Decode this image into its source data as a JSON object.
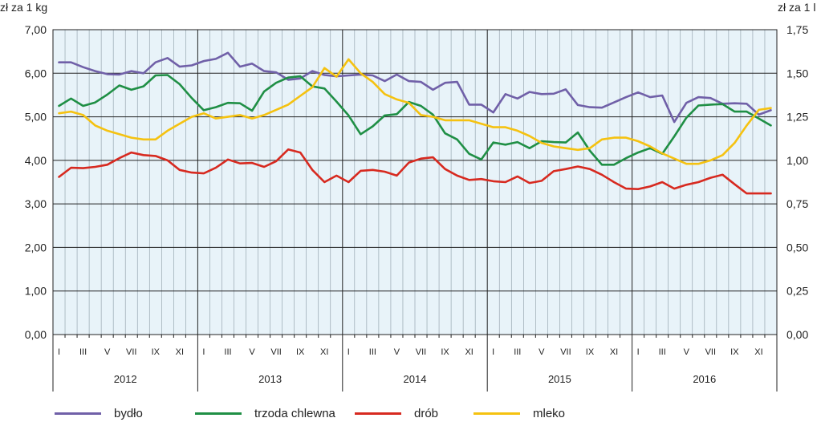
{
  "chart_data": {
    "type": "line",
    "y_left_unit": "zł za 1 kg",
    "y_right_unit": "zł za 1 l",
    "y_left_ticks": [
      "0,00",
      "1,00",
      "2,00",
      "3,00",
      "4,00",
      "5,00",
      "6,00",
      "7,00"
    ],
    "y_right_ticks": [
      "0,00",
      "0,25",
      "0,50",
      "0,75",
      "1,00",
      "1,25",
      "1,50",
      "1,75"
    ],
    "y_left_range": [
      0,
      7
    ],
    "y_right_range": [
      0,
      1.75
    ],
    "month_labels": [
      "I",
      "III",
      "V",
      "VII",
      "IX",
      "XI"
    ],
    "years": [
      "2012",
      "2013",
      "2014",
      "2015",
      "2016"
    ],
    "grid": true,
    "legend_position": "bottom",
    "series": [
      {
        "name": "bydło",
        "axis": "left",
        "color": "#7060a8",
        "values": [
          6.25,
          6.25,
          6.14,
          6.05,
          5.98,
          5.97,
          6.05,
          6.0,
          6.25,
          6.35,
          6.15,
          6.18,
          6.28,
          6.33,
          6.47,
          6.15,
          6.22,
          6.05,
          6.02,
          5.85,
          5.88,
          6.05,
          5.96,
          5.93,
          5.95,
          5.97,
          5.95,
          5.82,
          5.97,
          5.82,
          5.8,
          5.62,
          5.78,
          5.8,
          5.28,
          5.28,
          5.1,
          5.52,
          5.42,
          5.57,
          5.52,
          5.53,
          5.63,
          5.27,
          5.22,
          5.21,
          5.33,
          5.45,
          5.56,
          5.45,
          5.49,
          4.88,
          5.32,
          5.45,
          5.43,
          5.3,
          5.31,
          5.3,
          5.05,
          5.15
        ]
      },
      {
        "name": "trzoda chlewna",
        "axis": "left",
        "color": "#1f8f45",
        "values": [
          5.25,
          5.42,
          5.25,
          5.33,
          5.51,
          5.72,
          5.62,
          5.7,
          5.95,
          5.96,
          5.75,
          5.43,
          5.15,
          5.22,
          5.32,
          5.31,
          5.14,
          5.58,
          5.78,
          5.9,
          5.93,
          5.7,
          5.65,
          5.35,
          5.03,
          4.6,
          4.78,
          5.03,
          5.06,
          5.34,
          5.25,
          5.05,
          4.62,
          4.48,
          4.15,
          4.02,
          4.41,
          4.36,
          4.42,
          4.28,
          4.44,
          4.42,
          4.41,
          4.64,
          4.22,
          3.9,
          3.9,
          4.05,
          4.18,
          4.28,
          4.15,
          4.55,
          4.98,
          5.26,
          5.28,
          5.29,
          5.12,
          5.12,
          4.96,
          4.8
        ]
      },
      {
        "name": "drób",
        "axis": "left",
        "color": "#d72a20",
        "values": [
          3.62,
          3.83,
          3.82,
          3.85,
          3.9,
          4.05,
          4.18,
          4.12,
          4.1,
          4.0,
          3.78,
          3.72,
          3.7,
          3.83,
          4.02,
          3.93,
          3.94,
          3.85,
          3.98,
          4.25,
          4.18,
          3.78,
          3.5,
          3.65,
          3.5,
          3.76,
          3.78,
          3.74,
          3.65,
          3.95,
          4.04,
          4.07,
          3.8,
          3.65,
          3.55,
          3.57,
          3.52,
          3.5,
          3.63,
          3.48,
          3.53,
          3.75,
          3.8,
          3.86,
          3.8,
          3.67,
          3.5,
          3.35,
          3.34,
          3.4,
          3.5,
          3.35,
          3.44,
          3.5,
          3.6,
          3.67,
          3.45,
          3.24,
          3.24,
          3.24
        ]
      },
      {
        "name": "mleko",
        "axis": "right",
        "color": "#f5c210",
        "values": [
          1.27,
          1.28,
          1.26,
          1.2,
          1.17,
          1.15,
          1.13,
          1.12,
          1.12,
          1.17,
          1.21,
          1.25,
          1.27,
          1.24,
          1.25,
          1.26,
          1.24,
          1.26,
          1.29,
          1.32,
          1.37,
          1.42,
          1.53,
          1.48,
          1.58,
          1.5,
          1.45,
          1.38,
          1.35,
          1.33,
          1.26,
          1.25,
          1.23,
          1.23,
          1.23,
          1.21,
          1.19,
          1.19,
          1.17,
          1.14,
          1.1,
          1.08,
          1.07,
          1.06,
          1.07,
          1.12,
          1.13,
          1.13,
          1.11,
          1.08,
          1.04,
          1.01,
          0.98,
          0.98,
          1.0,
          1.03,
          1.1,
          1.2,
          1.29,
          1.3
        ]
      }
    ]
  }
}
